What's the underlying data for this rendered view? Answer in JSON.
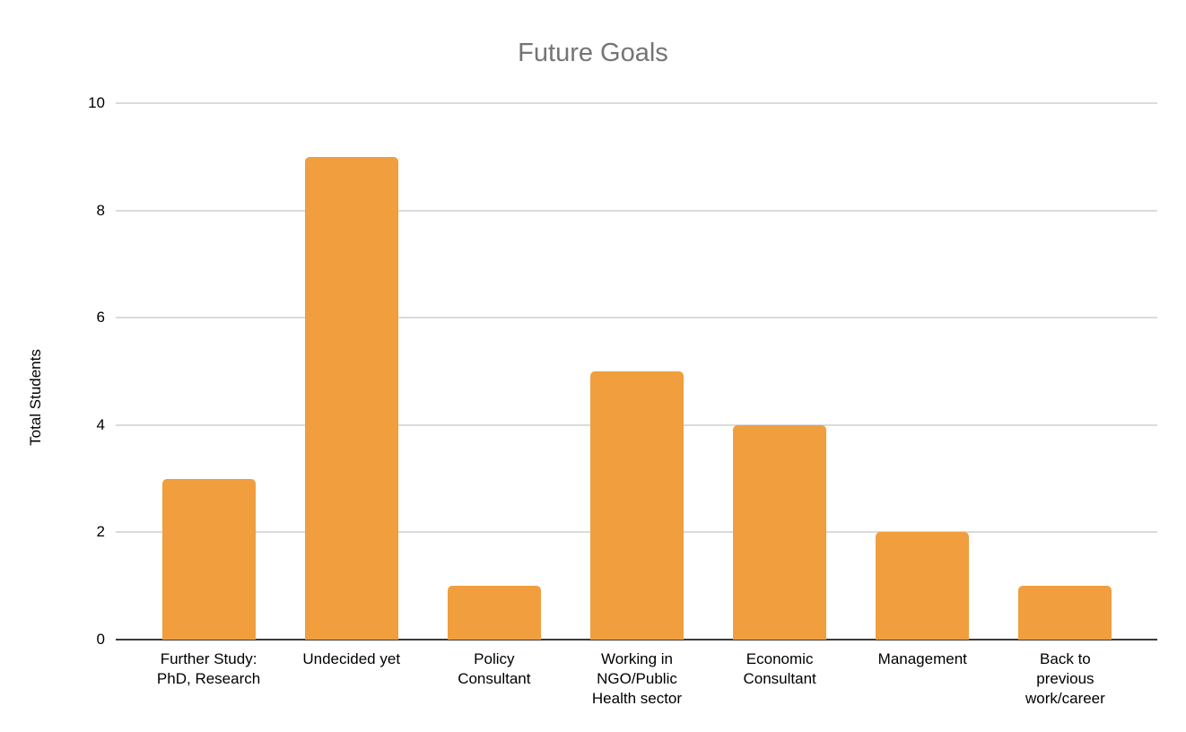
{
  "chart_data": {
    "type": "bar",
    "title": "Future Goals",
    "xlabel": "",
    "ylabel": "Total Students",
    "categories": [
      "Further Study: PhD, Research",
      "Undecided yet",
      "Policy Consultant",
      "Working in NGO/Public Health sector",
      "Economic Consultant",
      "Management",
      "Back to previous work/career"
    ],
    "values": [
      3,
      9,
      1,
      5,
      4,
      2,
      1
    ],
    "ylim": [
      0,
      10
    ],
    "yticks": [
      0,
      2,
      4,
      6,
      8,
      10
    ],
    "grid": true,
    "legend": "none",
    "bar_color": "#F09E3E",
    "title_color": "#757575",
    "gridline_color": "#dbdbdb",
    "axis_line_color": "#3b3b3b",
    "tick_label_color": "#000000"
  }
}
